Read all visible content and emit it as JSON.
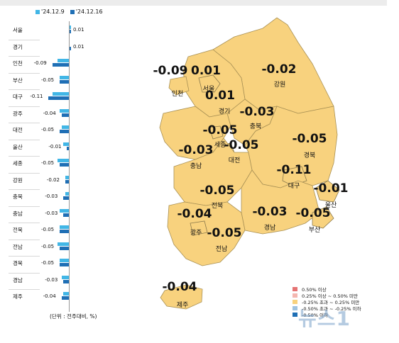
{
  "legend_top": [
    {
      "label": "'24.12.9",
      "color": "#41b6e6"
    },
    {
      "label": "'24.12.16",
      "color": "#1f6fb5"
    }
  ],
  "chart_data": {
    "type": "bar",
    "orientation": "horizontal",
    "categories": [
      "서울",
      "경기",
      "인천",
      "부산",
      "대구",
      "광주",
      "대전",
      "울산",
      "세종",
      "강원",
      "충북",
      "충남",
      "전북",
      "전남",
      "경북",
      "경남",
      "제주"
    ],
    "series": [
      {
        "name": "'24.12.9",
        "values": [
          0.01,
          0.0,
          -0.06,
          -0.05,
          -0.09,
          -0.05,
          -0.04,
          -0.03,
          -0.06,
          -0.02,
          -0.02,
          -0.05,
          -0.05,
          -0.06,
          -0.05,
          -0.04,
          -0.03
        ]
      },
      {
        "name": "'24.12.16",
        "values": [
          0.01,
          0.01,
          -0.09,
          -0.05,
          -0.11,
          -0.04,
          -0.05,
          -0.01,
          -0.05,
          -0.02,
          -0.03,
          -0.03,
          -0.05,
          -0.05,
          -0.05,
          -0.03,
          -0.04
        ]
      }
    ],
    "value_labels": [
      "0.01",
      "0.01",
      "-0.09",
      "-0.05",
      "-0.11",
      "-0.04",
      "-0.05",
      "-0.01",
      "-0.05",
      "-0.02",
      "-0.03",
      "-0.03",
      "-0.05",
      "-0.05",
      "-0.05",
      "-0.03",
      "-0.04"
    ],
    "unit_note": "(단위 : 전주대비, %)"
  },
  "map": {
    "regions": [
      {
        "name": "인천",
        "value": "-0.09"
      },
      {
        "name": "서울",
        "value": "0.01"
      },
      {
        "name": "경기",
        "value": "0.01"
      },
      {
        "name": "강원",
        "value": "-0.02"
      },
      {
        "name": "충북",
        "value": "-0.03"
      },
      {
        "name": "세종",
        "value": "-0.05"
      },
      {
        "name": "충남",
        "value": "-0.03"
      },
      {
        "name": "대전",
        "value": "-0.05"
      },
      {
        "name": "경북",
        "value": "-0.05"
      },
      {
        "name": "대구",
        "value": "-0.11"
      },
      {
        "name": "울산",
        "value": "-0.01"
      },
      {
        "name": "전북",
        "value": "-0.05"
      },
      {
        "name": "광주",
        "value": "-0.04"
      },
      {
        "name": "경남",
        "value": "-0.03"
      },
      {
        "name": "부산",
        "value": "-0.05"
      },
      {
        "name": "전남",
        "value": "-0.05"
      },
      {
        "name": "제주",
        "value": "-0.04"
      }
    ]
  },
  "map_legend": [
    {
      "label": "0.50% 이상",
      "color": "#e57373"
    },
    {
      "label": "0.25% 이상 ~ 0.50% 미만",
      "color": "#f4b7b0"
    },
    {
      "label": "-0.25% 초과 ~ 0.25% 미만",
      "color": "#f8d27e"
    },
    {
      "label": "-0.50% 초과 ~ -0.25% 이하",
      "color": "#9fc3e0"
    },
    {
      "label": "-0.50% 이하",
      "color": "#1f6fb5"
    }
  ],
  "watermark": "뉴스1"
}
